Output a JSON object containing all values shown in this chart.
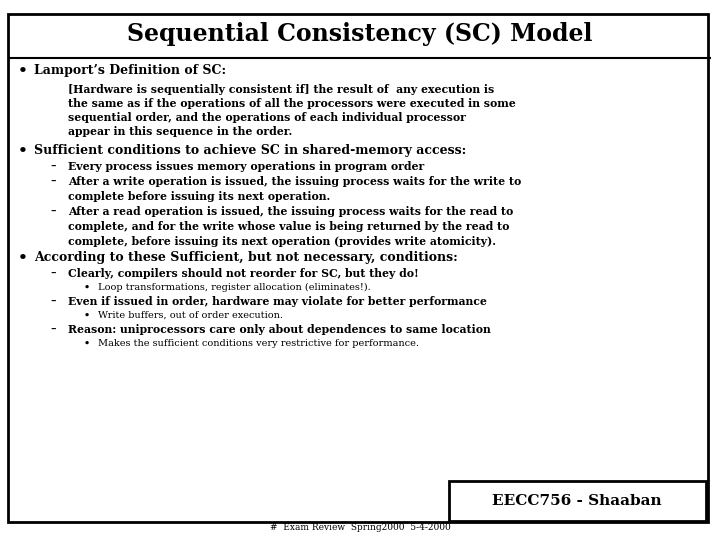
{
  "title": "Sequential Consistency (SC) Model",
  "bg_color": "#ffffff",
  "border_color": "#000000",
  "text_color": "#000000",
  "title_fontsize": 17,
  "footer_label": "EECC756 - Shaaban",
  "footer_sub": "#  Exam Review  Spring2000  5-4-2000",
  "content": [
    {
      "type": "bullet1",
      "text": "Lamport’s Definition of SC:"
    },
    {
      "type": "blockquote",
      "lines": [
        "[Hardware is sequentially consistent if] the result of  any execution is",
        "the same as if the operations of all the processors were executed in some",
        "sequential order, and the operations of each individual processor",
        "appear in this sequence in the order."
      ]
    },
    {
      "type": "bullet1",
      "text": "Sufficient conditions to achieve SC in shared-memory access:"
    },
    {
      "type": "bullet2",
      "lines": [
        "Every process issues memory operations in program order"
      ]
    },
    {
      "type": "bullet2",
      "lines": [
        "After a write operation is issued, the issuing process waits for the write to",
        "complete before issuing its next operation."
      ]
    },
    {
      "type": "bullet2",
      "lines": [
        "After a read operation is issued, the issuing process waits for the read to",
        "complete, and for the write whose value is being returned by the read to",
        "complete, before issuing its next operation (provides write atomicity)."
      ]
    },
    {
      "type": "bullet1",
      "text": "According to these Sufficient, but not necessary, conditions:"
    },
    {
      "type": "bullet2",
      "lines": [
        "Clearly, compilers should not reorder for SC, but they do!"
      ]
    },
    {
      "type": "bullet3",
      "lines": [
        "Loop transformations, register allocation (eliminates!)."
      ]
    },
    {
      "type": "bullet2",
      "lines": [
        "Even if issued in order, hardware may violate for better performance"
      ]
    },
    {
      "type": "bullet3",
      "lines": [
        "Write buffers, out of order execution."
      ]
    },
    {
      "type": "bullet2",
      "lines": [
        "Reason: uniprocessors care only about dependences to same location"
      ]
    },
    {
      "type": "bullet3",
      "lines": [
        "Makes the sufficient conditions very restrictive for performance."
      ]
    }
  ]
}
